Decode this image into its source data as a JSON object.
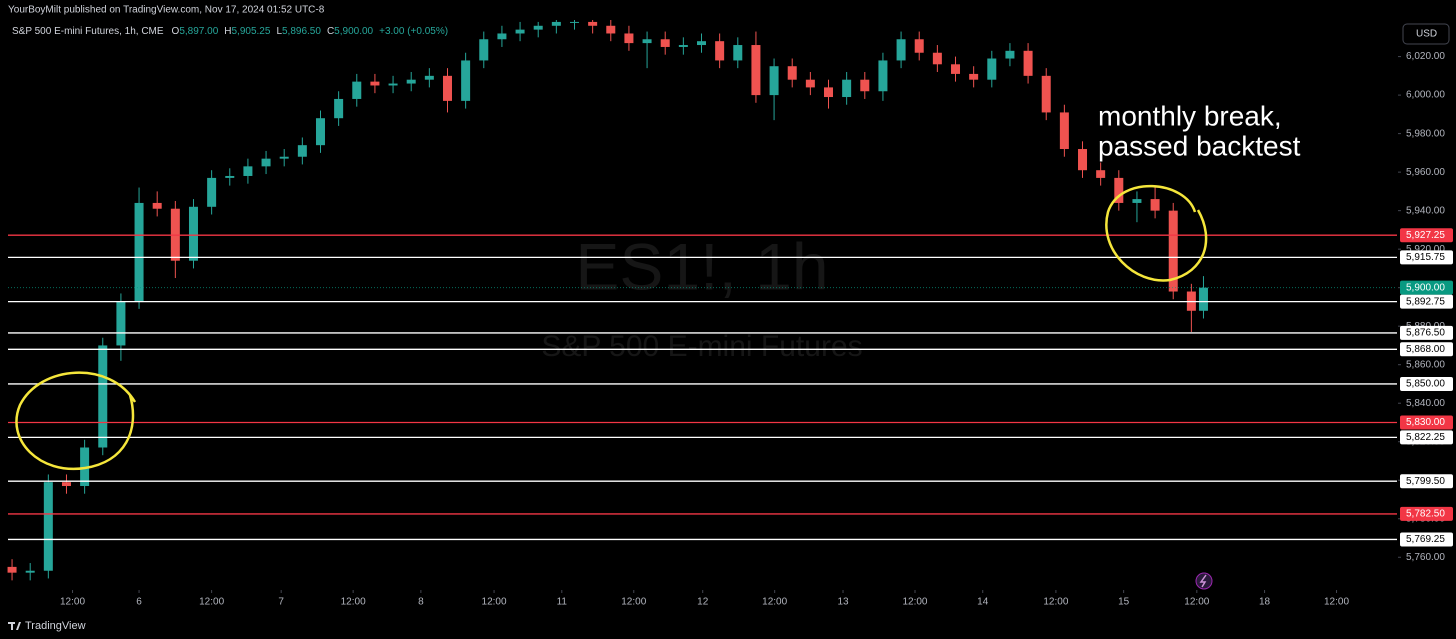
{
  "header": {
    "attribution": "YourBoyMilt published on TradingView.com, Nov 17, 2024 01:52 UTC-8",
    "currency": "USD",
    "footer": "TradingView"
  },
  "chart_data": {
    "type": "candlestick",
    "legend": {
      "symbol": "S&P 500 E-mini Futures, 1h, CME",
      "items": [
        {
          "key": "O",
          "value": "5,897.00"
        },
        {
          "key": "H",
          "value": "5,905.25"
        },
        {
          "key": "L",
          "value": "5,896.50"
        },
        {
          "key": "C",
          "value": "5,900.00"
        }
      ],
      "change": "+3.00 (+0.05%)"
    },
    "watermark": {
      "title": "ES1!, 1h",
      "subtitle": "S&P 500 E-mini Futures"
    },
    "annotation": [
      "monthly break,",
      "passed backtest"
    ],
    "up_color": "#26a69a",
    "down_color": "#ef5350",
    "xlim": [
      -1,
      229
    ],
    "ylim": [
      5743,
      6039
    ],
    "xticks": [
      {
        "value": 10,
        "label": "12:00"
      },
      {
        "value": 21,
        "label": "6"
      },
      {
        "value": 33,
        "label": "12:00"
      },
      {
        "value": 44.5,
        "label": "7"
      },
      {
        "value": 56.4,
        "label": "12:00"
      },
      {
        "value": 67.6,
        "label": "8"
      },
      {
        "value": 79.7,
        "label": "12:00"
      },
      {
        "value": 90.9,
        "label": "11"
      },
      {
        "value": 102.8,
        "label": "12:00"
      },
      {
        "value": 114.2,
        "label": "12"
      },
      {
        "value": 126.1,
        "label": "12:00"
      },
      {
        "value": 137.4,
        "label": "13"
      },
      {
        "value": 149.3,
        "label": "12:00"
      },
      {
        "value": 160.5,
        "label": "14"
      },
      {
        "value": 172.6,
        "label": "12:00"
      },
      {
        "value": 183.8,
        "label": "15"
      },
      {
        "value": 195.9,
        "label": "12:00"
      },
      {
        "value": 207.1,
        "label": "18"
      },
      {
        "value": 219,
        "label": "12:00"
      }
    ],
    "yticks": [
      {
        "value": 5760,
        "label": "5,760.00"
      },
      {
        "value": 5780,
        "label": "5,780.00"
      },
      {
        "value": 5800,
        "label": "5,800.00"
      },
      {
        "value": 5820,
        "label": "5,820.00"
      },
      {
        "value": 5840,
        "label": "5,840.00"
      },
      {
        "value": 5860,
        "label": "5,860.00"
      },
      {
        "value": 5880,
        "label": "5,880.00"
      },
      {
        "value": 5900,
        "label": "5,900.00"
      },
      {
        "value": 5920,
        "label": "5,920.00"
      },
      {
        "value": 5940,
        "label": "5,940.00"
      },
      {
        "value": 5960,
        "label": "5,960.00"
      },
      {
        "value": 5980,
        "label": "5,980.00"
      },
      {
        "value": 6000,
        "label": "6,000.00"
      },
      {
        "value": 6020,
        "label": "6,020.00"
      }
    ],
    "x": [
      0,
      3,
      6,
      9,
      12,
      15,
      18,
      21,
      24,
      27,
      30,
      33,
      36,
      39,
      42,
      45,
      48,
      51,
      54,
      57,
      60,
      63,
      66,
      69,
      72,
      75,
      78,
      81,
      84,
      87,
      90,
      93,
      96,
      99,
      102,
      105,
      108,
      111,
      114,
      117,
      120,
      123,
      126,
      129,
      132,
      135,
      138,
      141,
      144,
      147,
      150,
      153,
      156,
      159,
      162,
      165,
      168,
      171,
      174,
      177,
      180,
      183,
      186,
      189,
      192,
      195,
      197
    ],
    "open": [
      5755,
      5752,
      5753,
      5799,
      5797,
      5817,
      5870,
      5893,
      5944,
      5941,
      5914,
      5942,
      5957,
      5958,
      5963,
      5967,
      5968,
      5974,
      5988,
      5998,
      6007,
      6005,
      6006,
      6008,
      6010,
      5997,
      6018,
      6029,
      6032,
      6034,
      6036,
      6038,
      6038,
      6036,
      6032,
      6027,
      6029,
      6025,
      6026,
      6028,
      6018,
      6026,
      6000,
      6015,
      6008,
      6004,
      5999,
      6008,
      6002,
      6018,
      6029,
      6022,
      6016,
      6011,
      6008,
      6019,
      6023,
      6010,
      5991,
      5972,
      5961,
      5957,
      5944,
      5946,
      5940,
      5898,
      5888
    ],
    "high": [
      5759,
      5757,
      5803,
      5803,
      5821,
      5874,
      5897,
      5952,
      5950,
      5945,
      5946,
      5961,
      5962,
      5967,
      5971,
      5972,
      5978,
      5992,
      6002,
      6011,
      6011,
      6010,
      6012,
      6014,
      6014,
      6022,
      6033,
      6036,
      6038,
      6038,
      6039,
      6039,
      6039,
      6039,
      6036,
      6033,
      6033,
      6030,
      6032,
      6032,
      6030,
      6033,
      6019,
      6019,
      6012,
      6008,
      6012,
      6012,
      6022,
      6033,
      6033,
      6026,
      6020,
      6015,
      6023,
      6027,
      6027,
      6014,
      5995,
      5976,
      5965,
      5961,
      5950,
      5953,
      5944,
      5902,
      5906
    ],
    "low": [
      5748,
      5748,
      5749,
      5793,
      5793,
      5813,
      5862,
      5889,
      5937,
      5905,
      5910,
      5938,
      5953,
      5954,
      5959,
      5963,
      5964,
      5970,
      5984,
      5994,
      6001,
      6001,
      6002,
      6004,
      5991,
      5993,
      6014,
      6025,
      6028,
      6030,
      6032,
      6034,
      6032,
      6028,
      6023,
      6014,
      6021,
      6021,
      6022,
      6014,
      6014,
      5996,
      5987,
      6004,
      6000,
      5993,
      5995,
      5998,
      5997,
      6014,
      6018,
      6012,
      6007,
      6004,
      6004,
      6015,
      6006,
      5987,
      5968,
      5957,
      5953,
      5940,
      5934,
      5936,
      5894,
      5877,
      5884
    ],
    "close": [
      5752,
      5753,
      5799,
      5797,
      5817,
      5870,
      5893,
      5944,
      5941,
      5914,
      5942,
      5957,
      5958,
      5963,
      5967,
      5968,
      5974,
      5988,
      5998,
      6007,
      6005,
      6006,
      6008,
      6010,
      5997,
      6018,
      6029,
      6032,
      6034,
      6036,
      6038,
      6038,
      6036,
      6032,
      6027,
      6029,
      6025,
      6026,
      6028,
      6018,
      6026,
      6000,
      6015,
      6008,
      6004,
      5999,
      6008,
      6002,
      6018,
      6029,
      6022,
      6016,
      6011,
      6008,
      6019,
      6023,
      6010,
      5991,
      5972,
      5961,
      5957,
      5944,
      5946,
      5940,
      5898,
      5888,
      5900
    ],
    "levels": [
      {
        "value": 5927.25,
        "label": "5,927.25",
        "color": "#f23645"
      },
      {
        "value": 5915.75,
        "label": "5,915.75",
        "color": "#ffffff"
      },
      {
        "value": 5892.75,
        "label": "5,892.75",
        "color": "#ffffff"
      },
      {
        "value": 5876.5,
        "label": "5,876.50",
        "color": "#ffffff"
      },
      {
        "value": 5868,
        "label": "5,868.00",
        "color": "#ffffff"
      },
      {
        "value": 5850,
        "label": "5,850.00",
        "color": "#ffffff"
      },
      {
        "value": 5830,
        "label": "5,830.00",
        "color": "#f23645"
      },
      {
        "value": 5822.25,
        "label": "5,822.25",
        "color": "#ffffff"
      },
      {
        "value": 5799.5,
        "label": "5,799.50",
        "color": "#ffffff"
      },
      {
        "value": 5782.5,
        "label": "5,782.50",
        "color": "#f23645"
      },
      {
        "value": 5769.25,
        "label": "5,769.25",
        "color": "#ffffff"
      }
    ],
    "last_price": {
      "value": 5900,
      "label": "5,900.00",
      "color": "#089981"
    }
  }
}
